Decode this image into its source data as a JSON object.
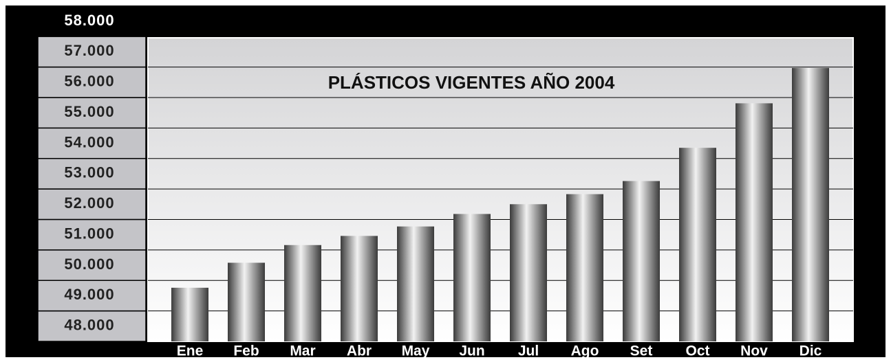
{
  "chart_data": {
    "type": "bar",
    "title": "PLÁSTICOS VIGENTES AÑO 2004",
    "categories": [
      "Ene",
      "Feb",
      "Mar",
      "Abr",
      "May",
      "Jun",
      "Jul",
      "Ago",
      "Set",
      "Oct",
      "Nov",
      "Dic"
    ],
    "values": [
      49260,
      50080,
      50660,
      50960,
      51270,
      51680,
      52000,
      52330,
      52760,
      53850,
      55310,
      56470
    ],
    "color": "#9a9a9a",
    "ylim": [
      47500,
      58000
    ],
    "yticks": [
      {
        "value": 48000,
        "label": "48.000"
      },
      {
        "value": 49000,
        "label": "49.000"
      },
      {
        "value": 50000,
        "label": "50.000"
      },
      {
        "value": 51000,
        "label": "51.000"
      },
      {
        "value": 52000,
        "label": "52.000"
      },
      {
        "value": 53000,
        "label": "53.000"
      },
      {
        "value": 54000,
        "label": "54.000"
      },
      {
        "value": 55000,
        "label": "55.000"
      },
      {
        "value": 56000,
        "label": "56.000"
      },
      {
        "value": 57000,
        "label": "57.000"
      },
      {
        "value": 58000,
        "label": "58.000"
      }
    ],
    "grid": true
  }
}
